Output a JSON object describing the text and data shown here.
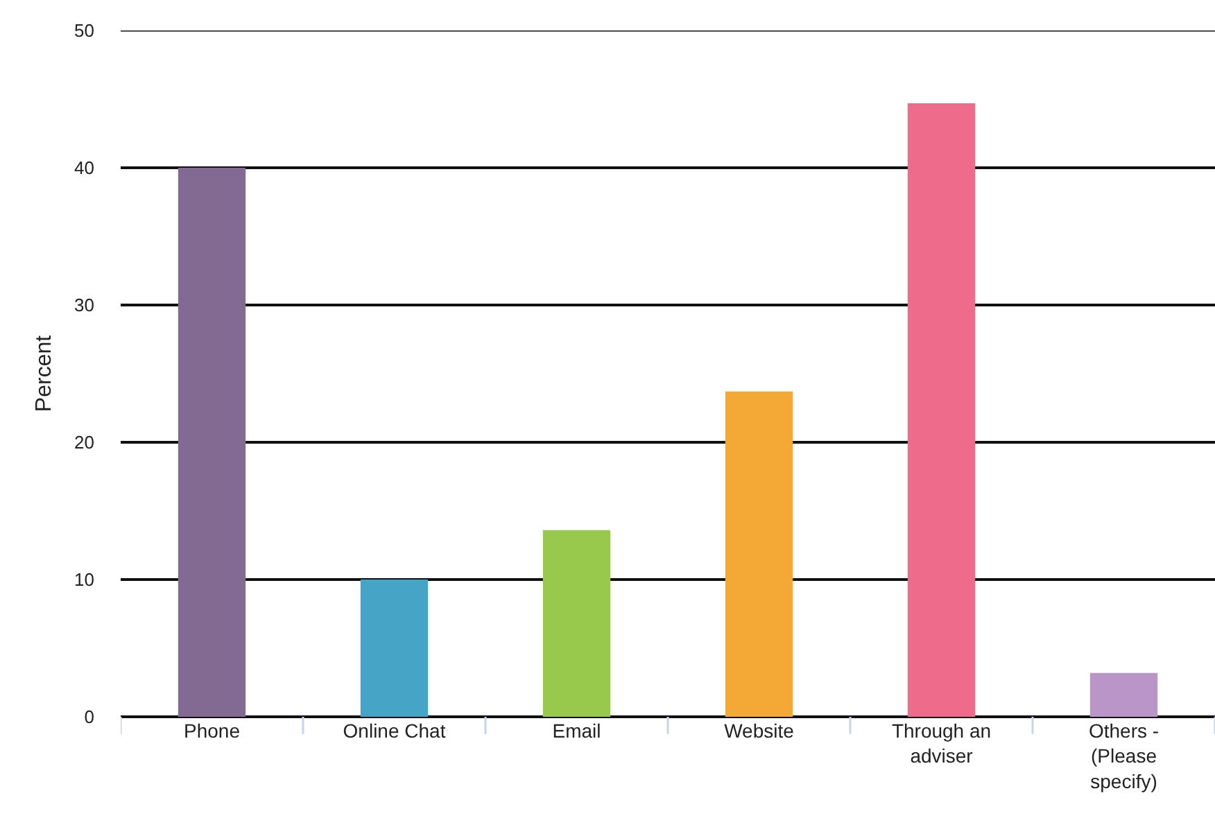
{
  "chart_data": {
    "type": "bar",
    "ylabel": "Percent",
    "categories": [
      "Phone",
      "Online Chat",
      "Email",
      "Website",
      "Through an adviser",
      "Others - (Please specify)"
    ],
    "values": [
      40,
      10,
      13.6,
      23.7,
      44.7,
      3.2
    ],
    "colors": [
      "#836a93",
      "#46a5c6",
      "#98c94c",
      "#f4a836",
      "#ef6b8b",
      "#b995c8"
    ],
    "ylim": [
      0,
      50
    ],
    "yticks": [
      0,
      10,
      20,
      30,
      40,
      50
    ],
    "grid": "y"
  }
}
